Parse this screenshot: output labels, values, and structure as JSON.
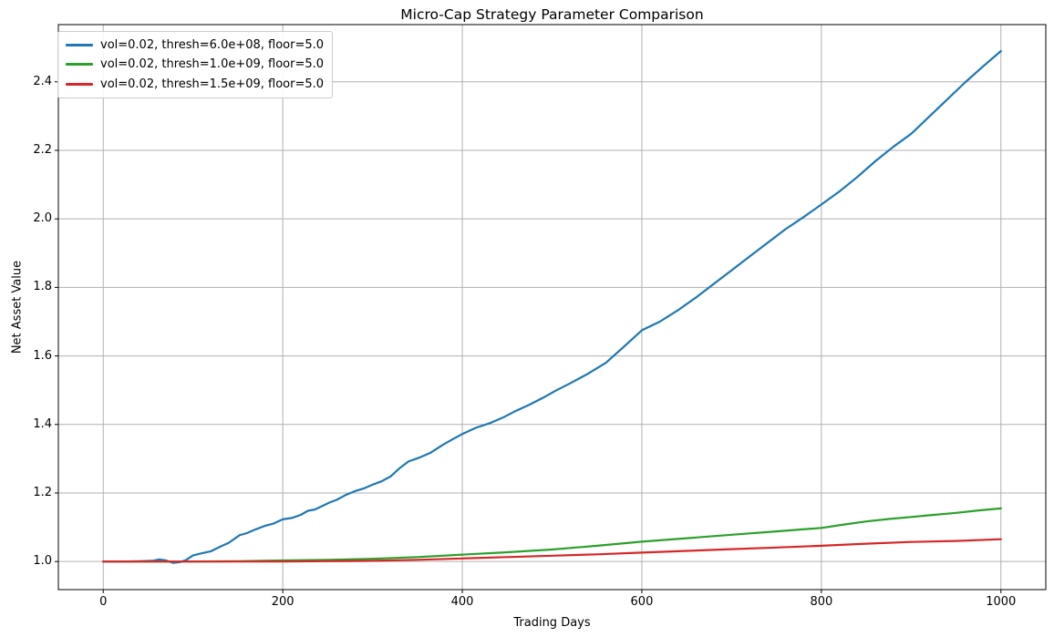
{
  "chart_data": {
    "type": "line",
    "title": "Micro-Cap Strategy Parameter Comparison",
    "xlabel": "Trading Days",
    "ylabel": "Net Asset Value",
    "xlim": [
      -50,
      1050
    ],
    "ylim": [
      0.918,
      2.567
    ],
    "xticks": [
      0,
      200,
      400,
      600,
      800,
      1000
    ],
    "xtick_labels": [
      "0",
      "200",
      "400",
      "600",
      "800",
      "1000"
    ],
    "yticks": [
      1.0,
      1.2,
      1.4,
      1.6,
      1.8,
      2.0,
      2.2,
      2.4
    ],
    "ytick_labels": [
      "1.0",
      "1.2",
      "1.4",
      "1.6",
      "1.8",
      "2.0",
      "2.2",
      "2.4"
    ],
    "grid": true,
    "grid_color": "#b0b0b0",
    "spine_color": "#000000",
    "background_color": "#ffffff",
    "legend_position": "upper left",
    "series": [
      {
        "label": "vol=0.02, thresh=6.0e+08, floor=5.0",
        "color": "#1f77b4",
        "x": [
          0,
          20,
          40,
          55,
          62,
          70,
          78,
          85,
          92,
          100,
          110,
          120,
          130,
          140,
          152,
          160,
          170,
          180,
          190,
          200,
          210,
          220,
          228,
          236,
          244,
          252,
          260,
          270,
          280,
          290,
          300,
          310,
          320,
          330,
          340,
          352,
          365,
          378,
          390,
          400,
          415,
          430,
          445,
          460,
          475,
          490,
          505,
          520,
          540,
          560,
          580,
          600,
          620,
          640,
          660,
          680,
          700,
          720,
          740,
          760,
          780,
          800,
          820,
          840,
          860,
          880,
          900,
          920,
          940,
          960,
          980,
          1000
        ],
        "y": [
          1.0,
          1.0,
          1.001,
          1.002,
          1.006,
          1.003,
          0.996,
          0.998,
          1.004,
          1.018,
          1.024,
          1.03,
          1.043,
          1.055,
          1.077,
          1.083,
          1.094,
          1.104,
          1.111,
          1.123,
          1.127,
          1.136,
          1.148,
          1.152,
          1.162,
          1.172,
          1.18,
          1.194,
          1.205,
          1.213,
          1.224,
          1.234,
          1.248,
          1.272,
          1.292,
          1.303,
          1.318,
          1.34,
          1.358,
          1.372,
          1.39,
          1.403,
          1.42,
          1.44,
          1.458,
          1.478,
          1.5,
          1.52,
          1.548,
          1.58,
          1.627,
          1.675,
          1.7,
          1.733,
          1.77,
          1.81,
          1.85,
          1.89,
          1.93,
          1.97,
          2.005,
          2.042,
          2.08,
          2.122,
          2.168,
          2.21,
          2.248,
          2.298,
          2.348,
          2.398,
          2.445,
          2.49
        ]
      },
      {
        "label": "vol=0.02, thresh=1.0e+09, floor=5.0",
        "color": "#2ca02c",
        "x": [
          0,
          100,
          150,
          200,
          250,
          300,
          350,
          400,
          450,
          500,
          550,
          600,
          650,
          700,
          750,
          800,
          825,
          850,
          875,
          900,
          925,
          950,
          975,
          1000
        ],
        "y": [
          1.0,
          1.0,
          1.001,
          1.003,
          1.005,
          1.008,
          1.013,
          1.02,
          1.027,
          1.035,
          1.046,
          1.058,
          1.068,
          1.078,
          1.088,
          1.098,
          1.108,
          1.117,
          1.124,
          1.13,
          1.136,
          1.142,
          1.149,
          1.155
        ]
      },
      {
        "label": "vol=0.02, thresh=1.5e+09, floor=5.0",
        "color": "#d62728",
        "x": [
          0,
          100,
          200,
          250,
          300,
          350,
          400,
          450,
          500,
          550,
          600,
          650,
          700,
          750,
          800,
          850,
          900,
          950,
          1000
        ],
        "y": [
          1.0,
          1.0,
          1.0,
          1.001,
          1.002,
          1.005,
          1.009,
          1.013,
          1.017,
          1.021,
          1.026,
          1.031,
          1.036,
          1.041,
          1.046,
          1.052,
          1.057,
          1.06,
          1.065
        ]
      }
    ]
  }
}
